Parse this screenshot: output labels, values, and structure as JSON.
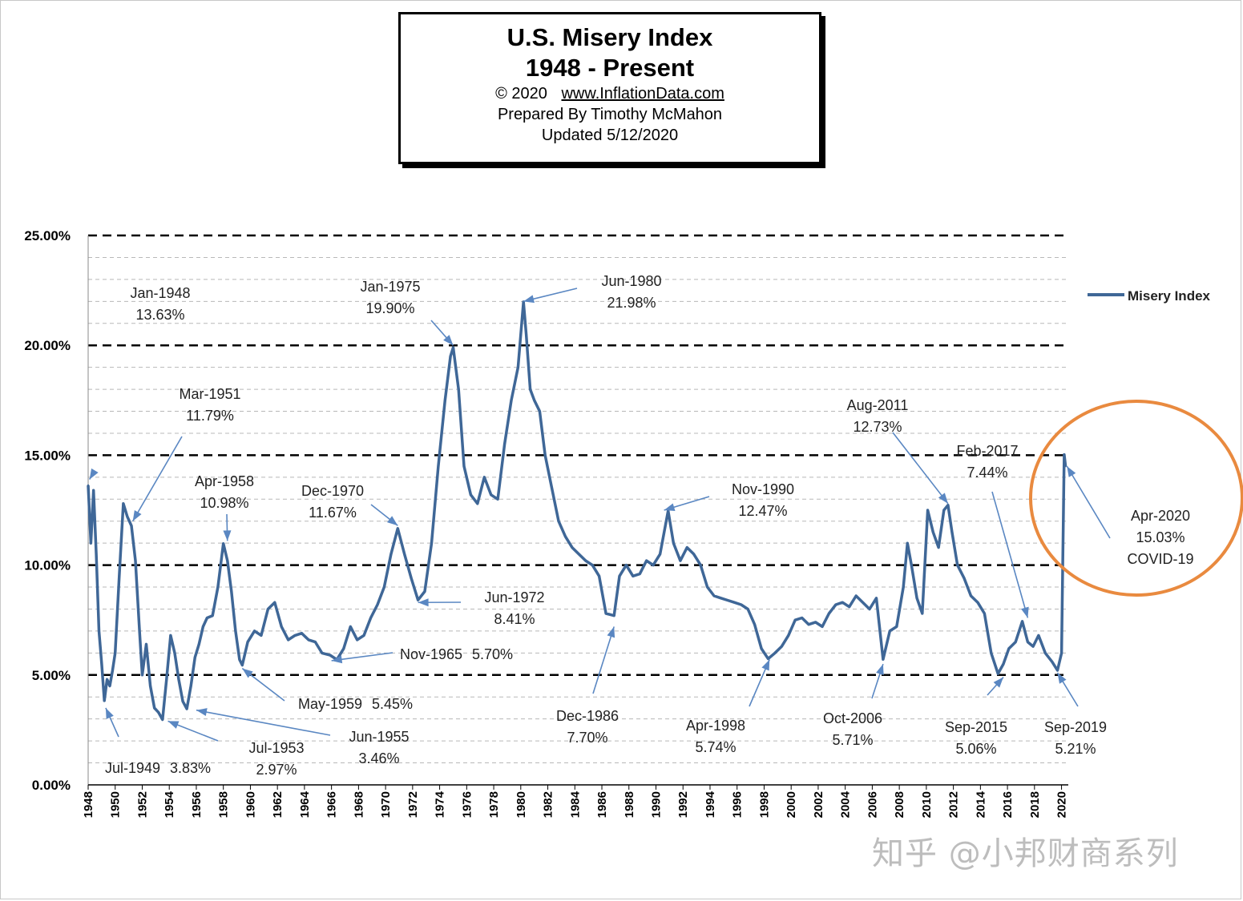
{
  "title_box": {
    "line1": "U.S. Misery Index",
    "line2": "1948 - Present",
    "copyright": "© 2020",
    "url": "www.InflationData.com",
    "author": "Prepared  By Timothy  McMahon",
    "updated": "Updated  5/12/2020"
  },
  "watermark": "知乎 @小邦财商系列",
  "colors": {
    "series": "#3f6797",
    "arrow": "#5a87c2",
    "highlight": "#e98a3f"
  },
  "chart_data": {
    "type": "line",
    "title": "U.S. Misery Index",
    "subtitle": "1948 - Present",
    "ylim": [
      0,
      25
    ],
    "xlim": [
      1948,
      2020.5
    ],
    "y_ticks": [
      "0.00%",
      "5.00%",
      "10.00%",
      "15.00%",
      "20.00%",
      "25.00%"
    ],
    "y_tick_values": [
      0,
      5,
      10,
      15,
      20,
      25
    ],
    "x_ticks": [
      "1948",
      "1950",
      "1952",
      "1954",
      "1956",
      "1958",
      "1960",
      "1962",
      "1964",
      "1966",
      "1968",
      "1970",
      "1972",
      "1974",
      "1976",
      "1978",
      "1980",
      "1982",
      "1984",
      "1986",
      "1988",
      "1990",
      "1992",
      "1994",
      "1996",
      "1998",
      "2000",
      "2002",
      "2004",
      "2006",
      "2008",
      "2010",
      "2012",
      "2014",
      "2016",
      "2018",
      "2020"
    ],
    "grid": {
      "major_dashed": true,
      "minor_dashed": true
    },
    "legend": {
      "position": "right",
      "entries": [
        "Misery Index"
      ]
    },
    "series": [
      {
        "name": "Misery Index",
        "x": [
          1948.0,
          1948.2,
          1948.4,
          1948.6,
          1948.8,
          1949.0,
          1949.2,
          1949.4,
          1949.6,
          1949.8,
          1950.0,
          1950.3,
          1950.6,
          1950.9,
          1951.2,
          1951.5,
          1951.8,
          1952.0,
          1952.3,
          1952.6,
          1952.9,
          1953.2,
          1953.5,
          1953.8,
          1954.1,
          1954.4,
          1954.7,
          1955.0,
          1955.3,
          1955.6,
          1955.9,
          1956.2,
          1956.5,
          1956.8,
          1957.2,
          1957.6,
          1958.0,
          1958.3,
          1958.6,
          1958.9,
          1959.2,
          1959.4,
          1959.8,
          1960.3,
          1960.8,
          1961.3,
          1961.8,
          1962.3,
          1962.8,
          1963.3,
          1963.8,
          1964.3,
          1964.8,
          1965.3,
          1965.9,
          1966.4,
          1966.9,
          1967.4,
          1967.9,
          1968.4,
          1968.9,
          1969.4,
          1969.9,
          1970.4,
          1970.9,
          1971.4,
          1971.9,
          1972.4,
          1972.9,
          1973.4,
          1973.9,
          1974.4,
          1974.8,
          1975.0,
          1975.4,
          1975.8,
          1976.3,
          1976.8,
          1977.3,
          1977.8,
          1978.3,
          1978.8,
          1979.3,
          1979.8,
          1980.2,
          1980.4,
          1980.7,
          1981.0,
          1981.4,
          1981.8,
          1982.3,
          1982.8,
          1983.3,
          1983.8,
          1984.3,
          1984.8,
          1985.3,
          1985.8,
          1986.3,
          1986.9,
          1987.3,
          1987.8,
          1988.3,
          1988.8,
          1989.3,
          1989.8,
          1990.3,
          1990.9,
          1991.3,
          1991.8,
          1992.3,
          1992.8,
          1993.3,
          1993.8,
          1994.3,
          1994.8,
          1995.3,
          1995.8,
          1996.3,
          1996.8,
          1997.3,
          1997.8,
          1998.3,
          1998.8,
          1999.3,
          1999.8,
          2000.3,
          2000.8,
          2001.3,
          2001.8,
          2002.3,
          2002.8,
          2003.3,
          2003.8,
          2004.3,
          2004.8,
          2005.3,
          2005.8,
          2006.3,
          2006.8,
          2007.3,
          2007.8,
          2008.3,
          2008.6,
          2008.9,
          2009.3,
          2009.7,
          2010.1,
          2010.5,
          2010.9,
          2011.3,
          2011.6,
          2011.9,
          2012.3,
          2012.8,
          2013.3,
          2013.8,
          2014.3,
          2014.8,
          2015.3,
          2015.7,
          2016.1,
          2016.6,
          2017.1,
          2017.5,
          2017.9,
          2018.3,
          2018.8,
          2019.3,
          2019.7,
          2020.0,
          2020.2,
          2020.3
        ],
        "values": [
          13.63,
          11.0,
          13.4,
          10.5,
          7.0,
          5.5,
          3.83,
          4.8,
          4.5,
          5.2,
          6.0,
          9.5,
          12.8,
          12.2,
          11.79,
          10.2,
          7.0,
          5.0,
          6.4,
          4.5,
          3.5,
          3.3,
          2.97,
          4.8,
          6.8,
          6.0,
          4.8,
          3.8,
          3.46,
          4.5,
          5.8,
          6.4,
          7.2,
          7.6,
          7.7,
          9.0,
          10.98,
          10.2,
          8.8,
          7.0,
          5.7,
          5.45,
          6.5,
          7.0,
          6.8,
          8.0,
          8.3,
          7.2,
          6.6,
          6.8,
          6.9,
          6.6,
          6.5,
          6.0,
          5.9,
          5.7,
          6.2,
          7.2,
          6.6,
          6.8,
          7.6,
          8.2,
          9.0,
          10.5,
          11.67,
          10.5,
          9.4,
          8.41,
          8.8,
          11.0,
          14.5,
          17.5,
          19.5,
          19.9,
          18.0,
          14.5,
          13.2,
          12.8,
          14.0,
          13.2,
          13.0,
          15.5,
          17.5,
          19.0,
          21.98,
          20.5,
          18.0,
          17.5,
          17.0,
          15.0,
          13.5,
          12.0,
          11.3,
          10.8,
          10.5,
          10.2,
          10.0,
          9.5,
          7.8,
          7.7,
          9.5,
          10.0,
          9.5,
          9.6,
          10.2,
          10.0,
          10.5,
          12.47,
          11.0,
          10.2,
          10.8,
          10.5,
          10.0,
          9.0,
          8.6,
          8.5,
          8.4,
          8.3,
          8.2,
          8.0,
          7.3,
          6.2,
          5.74,
          6.0,
          6.3,
          6.8,
          7.5,
          7.6,
          7.3,
          7.4,
          7.2,
          7.8,
          8.2,
          8.3,
          8.1,
          8.6,
          8.3,
          8.0,
          8.5,
          5.71,
          7.0,
          7.2,
          9.0,
          11.0,
          10.0,
          8.5,
          7.8,
          12.5,
          11.5,
          10.8,
          12.5,
          12.73,
          11.5,
          10.0,
          9.4,
          8.6,
          8.3,
          7.8,
          6.0,
          5.06,
          5.5,
          6.2,
          6.5,
          7.44,
          6.5,
          6.3,
          6.8,
          6.0,
          5.6,
          5.21,
          6.0,
          15.03,
          14.5
        ]
      }
    ],
    "annotations": [
      {
        "label": "Jan-1948",
        "value": "13.63%"
      },
      {
        "label": "Mar-1951",
        "value": "11.79%"
      },
      {
        "label": "Apr-1958",
        "value": "10.98%"
      },
      {
        "label": "Dec-1970",
        "value": "11.67%"
      },
      {
        "label": "Jan-1975",
        "value": "19.90%"
      },
      {
        "label": "Jun-1980",
        "value": "21.98%"
      },
      {
        "label": "Jun-1972",
        "value": "8.41%"
      },
      {
        "label": "Nov-1965",
        "value": "5.70%"
      },
      {
        "label": "May-1959",
        "value": "5.45%"
      },
      {
        "label": "Jun-1955",
        "value": "3.46%"
      },
      {
        "label": "Jul-1953",
        "value": "2.97%"
      },
      {
        "label": "Jul-1949",
        "value": "3.83%"
      },
      {
        "label": "Dec-1986",
        "value": "7.70%"
      },
      {
        "label": "Nov-1990",
        "value": "12.47%"
      },
      {
        "label": "Apr-1998",
        "value": "5.74%"
      },
      {
        "label": "Oct-2006",
        "value": "5.71%"
      },
      {
        "label": "Aug-2011",
        "value": "12.73%"
      },
      {
        "label": "Feb-2017",
        "value": "7.44%"
      },
      {
        "label": "Sep-2015",
        "value": "5.06%"
      },
      {
        "label": "Sep-2019",
        "value": "5.21%"
      },
      {
        "label": "Apr-2020",
        "value": "15.03%",
        "note": "COVID-19"
      }
    ]
  }
}
